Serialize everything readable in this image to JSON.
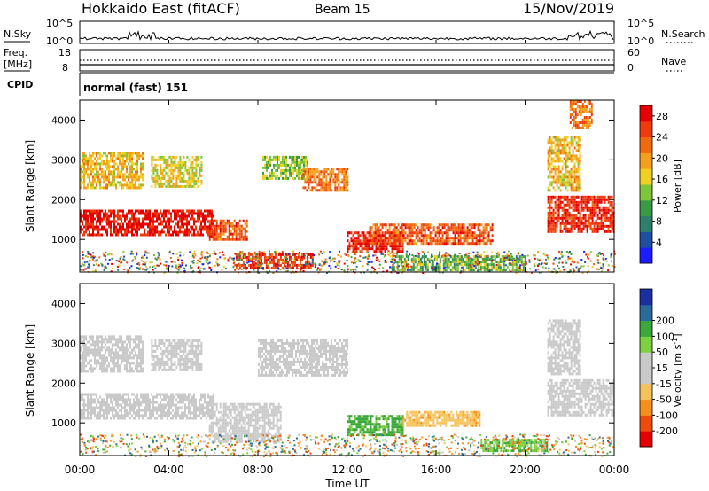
{
  "header": {
    "title": "Hokkaido East (fitACF)",
    "beam": "Beam 15",
    "date": "15/Nov/2019"
  },
  "strip": {
    "nsky_label": "N.Sky",
    "nsky_top": "10^5",
    "nsky_bottom": "10^0",
    "nsearch_label": "N.Search",
    "nsearch_top": "10^5",
    "nsearch_bottom": "10^0",
    "freq_label_1": "Freq.",
    "freq_label_2": "[MHz]",
    "freq_top": "18",
    "freq_bottom": "8",
    "nave_label": "Nave",
    "nave_top": "60",
    "nave_bottom": "0",
    "cpid_label": "CPID",
    "cpid_text": "normal (fast) 151"
  },
  "colors": {
    "power": [
      "#1c1cff",
      "#1e4fa0",
      "#2f7f6a",
      "#3a9a45",
      "#7ec53a",
      "#f0d020",
      "#f5a01c",
      "#f26a10",
      "#ee3a0c",
      "#e50000"
    ],
    "velocity": [
      "#e50000",
      "#ee4a0a",
      "#f5901a",
      "#f6c25a",
      "#c9c9c9",
      "#c9c9c9",
      "#7fd040",
      "#3aa83a",
      "#2b6a9a",
      "#1a2fa0"
    ]
  },
  "chart_data": [
    {
      "type": "heatmap",
      "title": "Power",
      "ylabel": "Slant Range [km]",
      "ylim": [
        180,
        4500
      ],
      "xlim": [
        0,
        24
      ],
      "yticks": [
        "1000",
        "2000",
        "3000",
        "4000"
      ],
      "colorbar_label": "Power [dB]",
      "colorbar_ticks": [
        "4",
        "8",
        "12",
        "16",
        "20",
        "24",
        "28"
      ],
      "colorbar_range": [
        0,
        30
      ],
      "regions": [
        {
          "x": [
            0.0,
            6.0
          ],
          "y": [
            1100,
            1750
          ],
          "v": 28
        },
        {
          "x": [
            0.0,
            2.8
          ],
          "y": [
            2300,
            3200
          ],
          "v": 18
        },
        {
          "x": [
            3.2,
            5.5
          ],
          "y": [
            2300,
            3100
          ],
          "v": 16
        },
        {
          "x": [
            5.8,
            7.5
          ],
          "y": [
            1000,
            1500
          ],
          "v": 24
        },
        {
          "x": [
            7.0,
            10.5
          ],
          "y": [
            300,
            650
          ],
          "v": 26
        },
        {
          "x": [
            8.2,
            10.2
          ],
          "y": [
            2500,
            3100
          ],
          "v": 14
        },
        {
          "x": [
            10.0,
            12.0
          ],
          "y": [
            2200,
            2800
          ],
          "v": 22
        },
        {
          "x": [
            12.0,
            14.5
          ],
          "y": [
            700,
            1200
          ],
          "v": 28
        },
        {
          "x": [
            13.0,
            18.5
          ],
          "y": [
            900,
            1400
          ],
          "v": 24
        },
        {
          "x": [
            14.0,
            20.0
          ],
          "y": [
            250,
            600
          ],
          "v": 12
        },
        {
          "x": [
            21.0,
            24.0
          ],
          "y": [
            1200,
            2100
          ],
          "v": 27
        },
        {
          "x": [
            21.0,
            22.5
          ],
          "y": [
            2200,
            3600
          ],
          "v": 18
        },
        {
          "x": [
            22.0,
            23.0
          ],
          "y": [
            3800,
            4500
          ],
          "v": 22
        }
      ]
    },
    {
      "type": "heatmap",
      "title": "Velocity",
      "xlabel": "Time UT",
      "ylabel": "Slant Range [km]",
      "ylim": [
        180,
        4500
      ],
      "xlim": [
        0,
        24
      ],
      "yticks": [
        "1000",
        "2000",
        "3000",
        "4000"
      ],
      "xticks": [
        "00:00",
        "04:00",
        "08:00",
        "12:00",
        "16:00",
        "20:00",
        "00:00"
      ],
      "colorbar_label": "Velocity [m s^-1]",
      "colorbar_ticks": [
        "-200",
        "-100",
        "-50",
        "-15",
        "15",
        "50",
        "100",
        "200"
      ],
      "regions": [
        {
          "x": [
            0.0,
            6.0
          ],
          "y": [
            1100,
            1750
          ],
          "v": 0
        },
        {
          "x": [
            0.0,
            2.8
          ],
          "y": [
            2300,
            3200
          ],
          "v": 0
        },
        {
          "x": [
            3.2,
            5.5
          ],
          "y": [
            2300,
            3100
          ],
          "v": 0
        },
        {
          "x": [
            5.8,
            9.0
          ],
          "y": [
            500,
            1500
          ],
          "v": 0
        },
        {
          "x": [
            8.0,
            12.0
          ],
          "y": [
            2200,
            3100
          ],
          "v": 0
        },
        {
          "x": [
            12.0,
            14.5
          ],
          "y": [
            700,
            1200
          ],
          "v": 60
        },
        {
          "x": [
            14.5,
            18.0
          ],
          "y": [
            900,
            1300
          ],
          "v": -40
        },
        {
          "x": [
            18.0,
            21.0
          ],
          "y": [
            300,
            600
          ],
          "v": 50
        },
        {
          "x": [
            21.0,
            24.0
          ],
          "y": [
            1200,
            2100
          ],
          "v": 0
        },
        {
          "x": [
            21.0,
            22.5
          ],
          "y": [
            2200,
            3600
          ],
          "v": 0
        }
      ]
    }
  ]
}
